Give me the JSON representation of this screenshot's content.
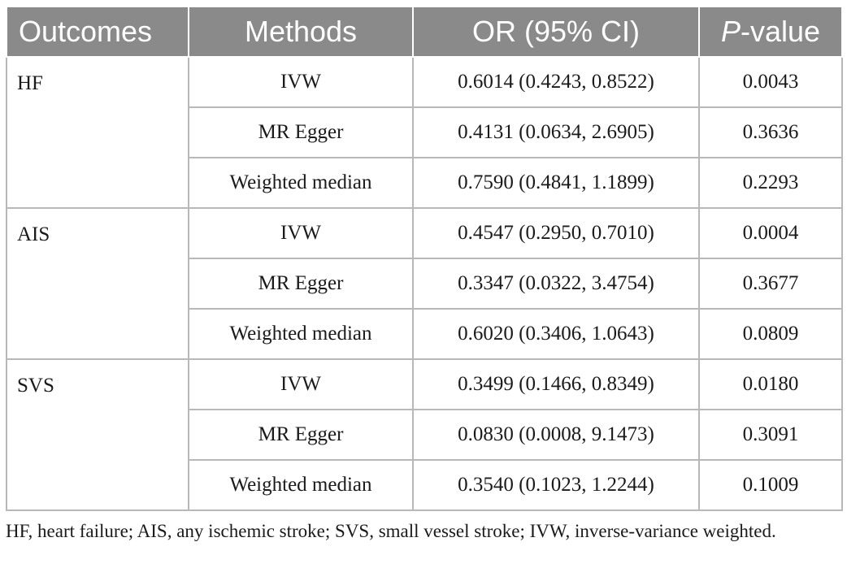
{
  "table": {
    "headers": {
      "outcomes": "Outcomes",
      "methods": "Methods",
      "or": "OR (95% CI)",
      "p_italic": "P",
      "p_rest": "-value"
    },
    "groups": [
      {
        "outcome": "HF",
        "rows": [
          {
            "method": "IVW",
            "or": "0.6014 (0.4243, 0.8522)",
            "p": "0.0043"
          },
          {
            "method": "MR Egger",
            "or": "0.4131 (0.0634, 2.6905)",
            "p": "0.3636"
          },
          {
            "method": "Weighted median",
            "or": "0.7590 (0.4841, 1.1899)",
            "p": "0.2293"
          }
        ]
      },
      {
        "outcome": "AIS",
        "rows": [
          {
            "method": "IVW",
            "or": "0.4547 (0.2950, 0.7010)",
            "p": "0.0004"
          },
          {
            "method": "MR Egger",
            "or": "0.3347 (0.0322, 3.4754)",
            "p": "0.3677"
          },
          {
            "method": "Weighted median",
            "or": "0.6020 (0.3406, 1.0643)",
            "p": "0.0809"
          }
        ]
      },
      {
        "outcome": "SVS",
        "rows": [
          {
            "method": "IVW",
            "or": "0.3499 (0.1466, 0.8349)",
            "p": "0.0180"
          },
          {
            "method": "MR Egger",
            "or": "0.0830 (0.0008, 9.1473)",
            "p": "0.3091"
          },
          {
            "method": "Weighted median",
            "or": "0.3540 (0.1023, 1.2244)",
            "p": "0.1009"
          }
        ]
      }
    ]
  },
  "footnote": "HF, heart failure; AIS, any ischemic stroke; SVS, small vessel stroke; IVW, inverse-variance weighted.",
  "colors": {
    "header_bg": "#8a8a8a",
    "header_text": "#ffffff",
    "grid_line": "#b8b8b8"
  }
}
